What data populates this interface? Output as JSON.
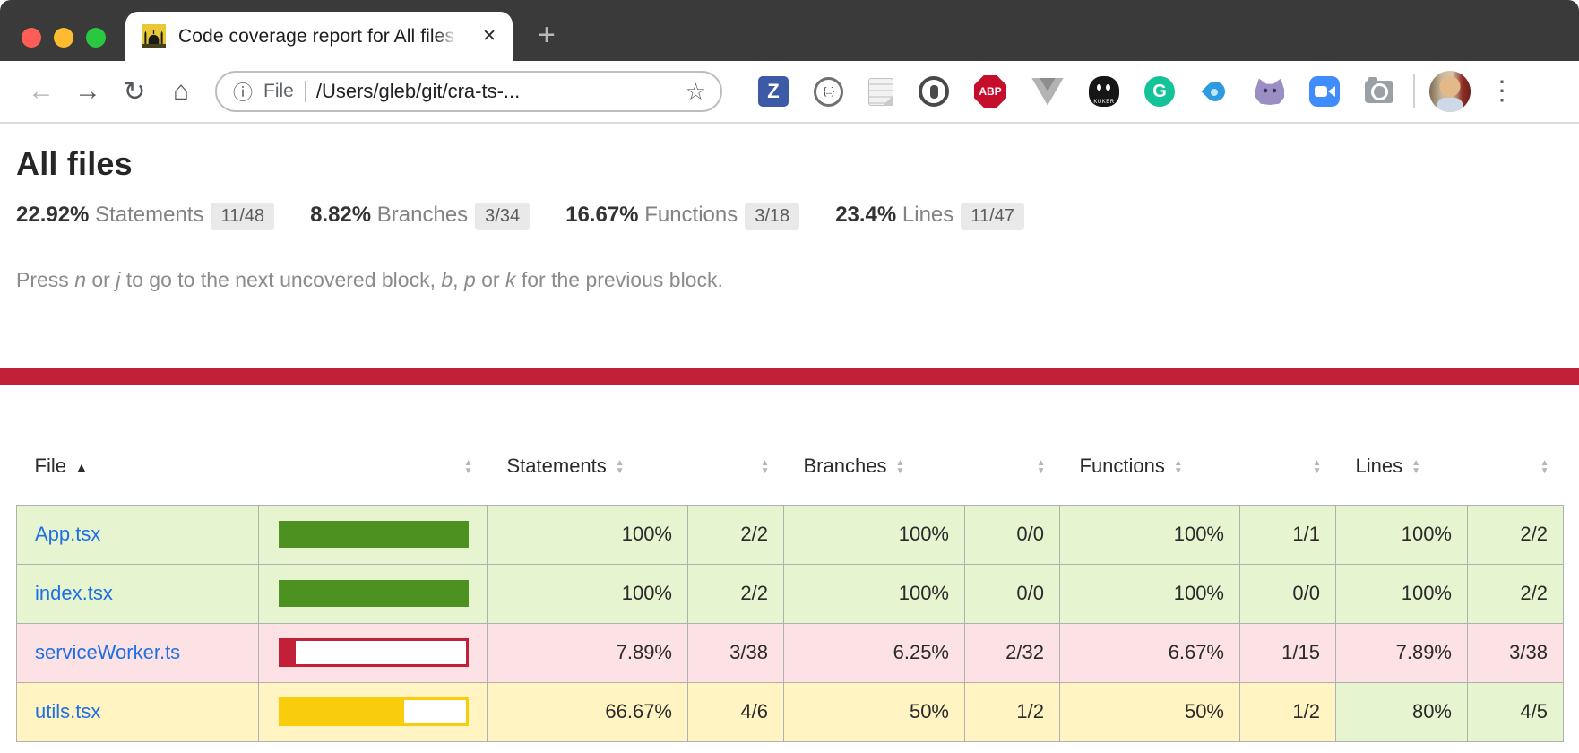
{
  "browser": {
    "tab_title": "Code coverage report for All files",
    "tab_close_glyph": "✕",
    "new_tab_glyph": "+",
    "nav": {
      "back": "←",
      "forward": "→",
      "reload": "↻",
      "home": "⌂",
      "info": "ⓘ",
      "star": "☆",
      "menu": "⋮"
    },
    "url_scheme_label": "File",
    "url_path": "/Users/gleb/git/cra-ts-...",
    "extensions": [
      {
        "name": "zotero",
        "label": "Z"
      },
      {
        "name": "json-viewer",
        "label": "{...}"
      },
      {
        "name": "tampermonkey-scroll",
        "label": ""
      },
      {
        "name": "onepassword",
        "label": ""
      },
      {
        "name": "adblock-plus",
        "label": "ABP"
      },
      {
        "name": "vue-devtools",
        "label": ""
      },
      {
        "name": "kuker",
        "label": "KUKER"
      },
      {
        "name": "grammarly",
        "label": "G"
      },
      {
        "name": "blue-flame",
        "label": ""
      },
      {
        "name": "octocat",
        "label": ""
      },
      {
        "name": "zoom-meeting",
        "label": ""
      },
      {
        "name": "screenshot-camera",
        "label": ""
      }
    ]
  },
  "page": {
    "title": "All files",
    "metrics": [
      {
        "pct": "22.92%",
        "label": "Statements",
        "fraction": "11/48"
      },
      {
        "pct": "8.82%",
        "label": "Branches",
        "fraction": "3/34"
      },
      {
        "pct": "16.67%",
        "label": "Functions",
        "fraction": "3/18"
      },
      {
        "pct": "23.4%",
        "label": "Lines",
        "fraction": "11/47"
      }
    ],
    "keyboard_hint": [
      {
        "text": "Press ",
        "italic": false
      },
      {
        "text": "n",
        "italic": true
      },
      {
        "text": " or ",
        "italic": false
      },
      {
        "text": "j",
        "italic": true
      },
      {
        "text": " to go to the next uncovered block, ",
        "italic": false
      },
      {
        "text": "b",
        "italic": true
      },
      {
        "text": ", ",
        "italic": false
      },
      {
        "text": "p",
        "italic": true
      },
      {
        "text": " or ",
        "italic": false
      },
      {
        "text": "k",
        "italic": true
      },
      {
        "text": " for the previous block.",
        "italic": false
      }
    ],
    "colors": {
      "status_bar": "#c21f39",
      "high_bg": "#e6f5d0",
      "medium_bg": "#fff4c2",
      "low_bg": "#fce1e5",
      "high_fill": "#4d9221",
      "medium_fill": "#f9cd0b",
      "low_fill": "#c21f39",
      "link": "#1f6fe5"
    },
    "table": {
      "headers": {
        "file": "File",
        "statements": "Statements",
        "branches": "Branches",
        "functions": "Functions",
        "lines": "Lines"
      },
      "sort": {
        "column": "file",
        "direction": "ascending"
      },
      "rows": [
        {
          "file": "App.tsx",
          "row_level": "high",
          "bar": {
            "fill_pct": 100,
            "level": "high"
          },
          "metrics": [
            {
              "pct": "100%",
              "raw": "2/2",
              "level": "high"
            },
            {
              "pct": "100%",
              "raw": "0/0",
              "level": "high"
            },
            {
              "pct": "100%",
              "raw": "1/1",
              "level": "high"
            },
            {
              "pct": "100%",
              "raw": "2/2",
              "level": "high"
            }
          ]
        },
        {
          "file": "index.tsx",
          "row_level": "high",
          "bar": {
            "fill_pct": 100,
            "level": "high"
          },
          "metrics": [
            {
              "pct": "100%",
              "raw": "2/2",
              "level": "high"
            },
            {
              "pct": "100%",
              "raw": "0/0",
              "level": "high"
            },
            {
              "pct": "100%",
              "raw": "0/0",
              "level": "high"
            },
            {
              "pct": "100%",
              "raw": "2/2",
              "level": "high"
            }
          ]
        },
        {
          "file": "serviceWorker.ts",
          "row_level": "low",
          "bar": {
            "fill_pct": 8,
            "level": "low"
          },
          "metrics": [
            {
              "pct": "7.89%",
              "raw": "3/38",
              "level": "low"
            },
            {
              "pct": "6.25%",
              "raw": "2/32",
              "level": "low"
            },
            {
              "pct": "6.67%",
              "raw": "1/15",
              "level": "low"
            },
            {
              "pct": "7.89%",
              "raw": "3/38",
              "level": "low"
            }
          ]
        },
        {
          "file": "utils.tsx",
          "row_level": "medium",
          "bar": {
            "fill_pct": 66.67,
            "level": "medium"
          },
          "metrics": [
            {
              "pct": "66.67%",
              "raw": "4/6",
              "level": "medium"
            },
            {
              "pct": "50%",
              "raw": "1/2",
              "level": "medium"
            },
            {
              "pct": "50%",
              "raw": "1/2",
              "level": "medium"
            },
            {
              "pct": "80%",
              "raw": "4/5",
              "level": "high"
            }
          ]
        }
      ]
    }
  }
}
